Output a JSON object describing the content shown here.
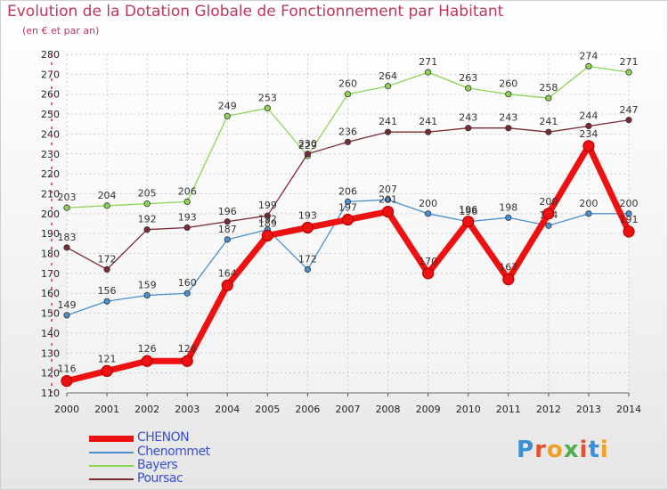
{
  "title": "Evolution de la Dotation Globale de Fonctionnement par Habitant",
  "subtitle": "(en € et par an)",
  "brand": "Proxiti",
  "chart_data": {
    "type": "line",
    "title": "Evolution de la Dotation Globale de Fonctionnement par Habitant",
    "subtitle": "(en € et par an)",
    "xlabel": "",
    "ylabel": "",
    "ylim": [
      110,
      280
    ],
    "yticks": [
      110,
      120,
      130,
      140,
      150,
      160,
      170,
      180,
      190,
      200,
      210,
      220,
      230,
      240,
      250,
      260,
      270,
      280
    ],
    "grid": true,
    "legend_position": "bottom-left",
    "categories": [
      "2000",
      "2001",
      "2002",
      "2003",
      "2004",
      "2005",
      "2006",
      "2007",
      "2008",
      "2009",
      "2010",
      "2011",
      "2012",
      "2013",
      "2014"
    ],
    "series": [
      {
        "name": "Bayers",
        "color": "#8ed455",
        "values": [
          203,
          204,
          205,
          206,
          249,
          253,
          229,
          260,
          264,
          271,
          263,
          260,
          258,
          274,
          271
        ]
      },
      {
        "name": "Poursac",
        "color": "#7a2a34",
        "values": [
          183,
          172,
          192,
          193,
          196,
          199,
          230,
          236,
          241,
          241,
          243,
          243,
          241,
          244,
          247
        ]
      },
      {
        "name": "Chenommet",
        "color": "#4a90d0",
        "values": [
          149,
          156,
          159,
          160,
          187,
          192,
          172,
          206,
          207,
          200,
          196,
          198,
          194,
          200,
          200
        ]
      },
      {
        "name": "CHENON",
        "color": "#ee1111",
        "values": [
          116,
          121,
          126,
          126,
          164,
          189,
          193,
          197,
          201,
          170,
          196,
          167,
          200,
          234,
          191
        ]
      }
    ],
    "legend_order": [
      "CHENON",
      "Chenommet",
      "Bayers",
      "Poursac"
    ]
  }
}
